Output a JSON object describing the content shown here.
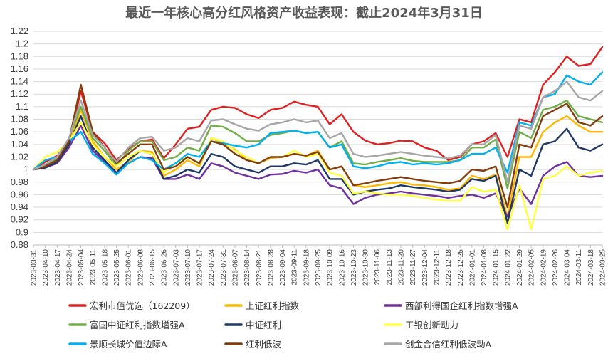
{
  "chart_data": {
    "type": "line",
    "title": "最近一年核心高分红风格资产收益表现：截止2024年3月31日",
    "xlabel": "",
    "ylabel": "",
    "ylim": [
      0.88,
      1.22
    ],
    "yticks": [
      "0.88",
      "0.9",
      "0.92",
      "0.94",
      "0.96",
      "0.98",
      "1",
      "1.02",
      "1.04",
      "1.06",
      "1.08",
      "1.1",
      "1.12",
      "1.14",
      "1.16",
      "1.18",
      "1.2",
      "1.22"
    ],
    "xticks": [
      "2023-03-31",
      "2023-04-10",
      "2023-04-17",
      "2023-04-24",
      "2023-05-04",
      "2023-05-11",
      "2023-05-18",
      "2023-05-25",
      "2023-06-01",
      "2023-06-08",
      "2023-06-15",
      "2023-06-26",
      "2023-07-03",
      "2023-07-10",
      "2023-07-17",
      "2023-07-24",
      "2023-07-31",
      "2023-08-07",
      "2023-08-14",
      "2023-08-21",
      "2023-08-28",
      "2023-09-04",
      "2023-09-11",
      "2023-09-18",
      "2023-09-25",
      "2023-10-09",
      "2023-10-16",
      "2023-10-23",
      "2023-10-30",
      "2023-11-06",
      "2023-11-13",
      "2023-11-20",
      "2023-11-27",
      "2023-12-04",
      "2023-12-11",
      "2023-12-18",
      "2023-12-25",
      "2024-01-01",
      "2024-01-08",
      "2024-01-15",
      "2024-01-22",
      "2024-01-29",
      "2024-02-05",
      "2024-02-19",
      "2024-02-26",
      "2024-03-04",
      "2024-03-11",
      "2024-03-18",
      "2024-03-25"
    ],
    "grid": true,
    "legend_position": "bottom",
    "series": [
      {
        "name": "宏利市值优选（162209）",
        "color": "#E02020",
        "values": [
          1.0,
          1.012,
          1.022,
          1.045,
          1.125,
          1.06,
          1.042,
          1.015,
          1.032,
          1.045,
          1.048,
          1.018,
          1.04,
          1.065,
          1.068,
          1.095,
          1.1,
          1.098,
          1.088,
          1.082,
          1.095,
          1.098,
          1.108,
          1.103,
          1.1,
          1.072,
          1.088,
          1.06,
          1.046,
          1.04,
          1.042,
          1.046,
          1.045,
          1.035,
          1.03,
          1.015,
          1.02,
          1.04,
          1.045,
          1.058,
          1.02,
          1.08,
          1.075,
          1.135,
          1.155,
          1.18,
          1.165,
          1.168,
          1.195
        ]
      },
      {
        "name": "上证红利指数",
        "color": "#FFB800",
        "values": [
          1.0,
          1.005,
          1.015,
          1.04,
          1.095,
          1.045,
          1.02,
          1.0,
          1.012,
          1.03,
          1.028,
          0.99,
          1.0,
          1.015,
          1.005,
          1.05,
          1.042,
          1.032,
          1.015,
          1.01,
          1.018,
          1.02,
          1.025,
          1.022,
          1.03,
          1.0,
          1.005,
          0.975,
          0.972,
          0.975,
          0.978,
          0.98,
          0.976,
          0.975,
          0.972,
          0.968,
          0.97,
          0.99,
          0.985,
          0.992,
          0.925,
          1.02,
          1.02,
          1.06,
          1.075,
          1.085,
          1.07,
          1.06,
          1.06
        ]
      },
      {
        "name": "西部利得国企红利指数增强A",
        "color": "#7030A0",
        "values": [
          1.0,
          1.003,
          1.01,
          1.035,
          1.07,
          1.03,
          1.012,
          0.995,
          1.01,
          1.02,
          1.018,
          0.985,
          0.985,
          0.992,
          0.985,
          1.01,
          1.005,
          0.995,
          0.99,
          0.985,
          0.992,
          0.993,
          0.998,
          0.995,
          1.0,
          0.975,
          0.97,
          0.945,
          0.955,
          0.96,
          0.962,
          0.965,
          0.962,
          0.96,
          0.958,
          0.955,
          0.958,
          0.96,
          0.955,
          0.962,
          0.925,
          0.97,
          0.945,
          0.99,
          1.005,
          1.012,
          0.99,
          0.988,
          0.99
        ]
      },
      {
        "name": "富国中证红利指数增强A",
        "color": "#70AD47",
        "values": [
          1.0,
          1.005,
          1.018,
          1.05,
          1.1,
          1.05,
          1.03,
          1.005,
          1.03,
          1.045,
          1.045,
          1.015,
          1.02,
          1.035,
          1.03,
          1.07,
          1.068,
          1.058,
          1.045,
          1.045,
          1.055,
          1.058,
          1.062,
          1.058,
          1.06,
          1.035,
          1.045,
          1.01,
          1.008,
          1.012,
          1.015,
          1.018,
          1.014,
          1.012,
          1.012,
          1.012,
          1.015,
          1.035,
          1.035,
          1.048,
          0.97,
          1.06,
          1.05,
          1.095,
          1.1,
          1.11,
          1.085,
          1.08,
          1.075
        ]
      },
      {
        "name": "中证红利",
        "color": "#1F3864",
        "values": [
          1.0,
          1.003,
          1.012,
          1.04,
          1.085,
          1.035,
          1.015,
          0.995,
          1.015,
          1.03,
          1.025,
          0.985,
          0.99,
          1.0,
          0.995,
          1.025,
          1.02,
          1.005,
          1.0,
          0.995,
          1.005,
          1.005,
          1.01,
          1.008,
          1.015,
          0.985,
          0.985,
          0.96,
          0.965,
          0.968,
          0.97,
          0.975,
          0.972,
          0.97,
          0.968,
          0.965,
          0.968,
          0.985,
          0.982,
          0.99,
          0.915,
          1.0,
          0.99,
          1.04,
          1.045,
          1.065,
          1.035,
          1.03,
          1.04
        ]
      },
      {
        "name": "工银创新动力",
        "color": "#FFFF40",
        "values": [
          1.0,
          1.02,
          1.028,
          1.045,
          1.075,
          1.04,
          1.02,
          1.005,
          1.02,
          1.03,
          1.025,
          0.995,
          1.01,
          1.02,
          1.01,
          1.05,
          1.045,
          1.03,
          1.02,
          1.01,
          1.02,
          1.02,
          1.03,
          1.02,
          1.025,
          0.995,
          0.99,
          0.962,
          0.965,
          0.962,
          0.96,
          0.96,
          0.958,
          0.955,
          0.952,
          0.95,
          0.95,
          0.972,
          0.965,
          0.968,
          0.905,
          0.975,
          0.905,
          0.985,
          0.99,
          1.005,
          0.99,
          0.995,
          0.998
        ]
      },
      {
        "name": "景顺长城价值边际A",
        "color": "#00B0F0",
        "values": [
          1.0,
          1.015,
          1.02,
          1.045,
          1.06,
          1.025,
          1.01,
          0.992,
          1.01,
          1.02,
          1.015,
          1.0,
          1.01,
          1.025,
          1.02,
          1.045,
          1.042,
          1.038,
          1.035,
          1.04,
          1.058,
          1.06,
          1.062,
          1.058,
          1.06,
          1.035,
          1.04,
          1.005,
          1.002,
          1.005,
          1.01,
          1.012,
          1.008,
          1.01,
          1.008,
          1.01,
          1.015,
          1.025,
          1.025,
          1.035,
          0.995,
          1.075,
          1.07,
          1.115,
          1.12,
          1.15,
          1.14,
          1.135,
          1.155
        ]
      },
      {
        "name": "红利低波",
        "color": "#833C0B",
        "values": [
          1.0,
          1.005,
          1.015,
          1.045,
          1.135,
          1.06,
          1.035,
          1.01,
          1.025,
          1.04,
          1.04,
          1.0,
          1.005,
          1.02,
          1.01,
          1.045,
          1.04,
          1.025,
          1.015,
          1.01,
          1.02,
          1.02,
          1.025,
          1.022,
          1.028,
          1.0,
          1.005,
          0.975,
          0.978,
          0.982,
          0.985,
          0.988,
          0.985,
          0.982,
          0.98,
          0.978,
          0.982,
          1.0,
          0.998,
          1.005,
          0.94,
          1.04,
          1.035,
          1.085,
          1.095,
          1.105,
          1.075,
          1.07,
          1.085
        ]
      },
      {
        "name": "创金合信红利低波动A",
        "color": "#A6A6A6",
        "values": [
          1.0,
          1.008,
          1.02,
          1.05,
          1.11,
          1.055,
          1.035,
          1.012,
          1.035,
          1.05,
          1.052,
          1.03,
          1.035,
          1.05,
          1.045,
          1.078,
          1.08,
          1.072,
          1.065,
          1.062,
          1.072,
          1.075,
          1.08,
          1.075,
          1.078,
          1.05,
          1.058,
          1.025,
          1.02,
          1.022,
          1.025,
          1.028,
          1.025,
          1.022,
          1.02,
          1.018,
          1.022,
          1.04,
          1.04,
          1.055,
          0.98,
          1.07,
          1.065,
          1.115,
          1.125,
          1.14,
          1.115,
          1.11,
          1.125
        ]
      }
    ]
  }
}
